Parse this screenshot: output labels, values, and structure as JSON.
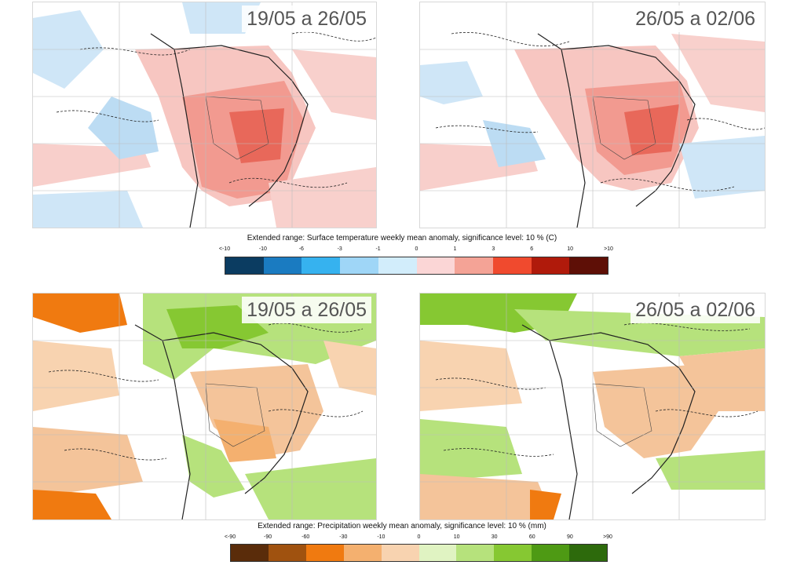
{
  "temperature": {
    "maps": [
      {
        "period": "19/05 a 26/05"
      },
      {
        "period": "26/05 a 02/06"
      }
    ],
    "colorbar": {
      "title": "Extended range: Surface temperature weekly mean anomaly, significance level: 10 % (C)",
      "ticks": [
        "<-10",
        "-10",
        "-6",
        "-3",
        "-1",
        "0",
        "1",
        "3",
        "6",
        "10",
        ">10"
      ],
      "colors": [
        "#0b3c61",
        "#1a7bc1",
        "#36b2ef",
        "#9fd6f7",
        "#d2edfb",
        "#fbd6d6",
        "#f4a396",
        "#f04a2e",
        "#b01a0b",
        "#5e0f06"
      ]
    }
  },
  "precipitation": {
    "maps": [
      {
        "period": "19/05 a 26/05"
      },
      {
        "period": "26/05 a 02/06"
      }
    ],
    "colorbar": {
      "title": "Extended range: Precipitation weekly mean anomaly, significance level: 10 % (mm)",
      "ticks": [
        "<-90",
        "-90",
        "-60",
        "-30",
        "-10",
        "0",
        "10",
        "30",
        "60",
        "90",
        ">90"
      ],
      "colors": [
        "#5a2c0a",
        "#a0520f",
        "#f07a10",
        "#f4b06f",
        "#f8d3b0",
        "#e0f3c2",
        "#b6e27c",
        "#86c832",
        "#4e9a14",
        "#2d6a0c"
      ]
    }
  }
}
